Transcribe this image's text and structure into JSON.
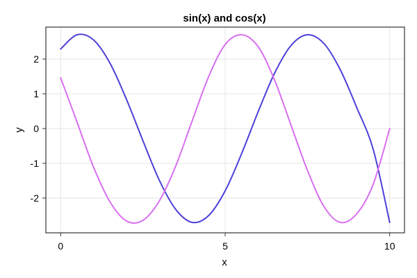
{
  "chart_data": {
    "type": "line",
    "title": "sin(x) and cos(x)",
    "xlabel": "x",
    "ylabel": "y",
    "xlim": [
      -0.45,
      10.45
    ],
    "ylim": [
      -3.0,
      2.92
    ],
    "x_ticks": [
      0,
      5,
      10
    ],
    "x_tick_labels": [
      "0",
      "5",
      "10"
    ],
    "y_ticks": [
      -2,
      -1,
      0,
      1,
      2
    ],
    "y_tick_labels": [
      "-2",
      "-1",
      "0",
      "1",
      "2"
    ],
    "grid": true,
    "legend": "none",
    "series": [
      {
        "color": "#4b3fd8",
        "x": [
          0,
          0.5,
          1,
          1.5,
          2,
          2.5,
          3,
          3.5,
          4,
          4.5,
          5,
          5.5,
          6,
          6.5,
          7,
          7.5,
          8,
          8.5,
          9,
          9.5,
          10
        ],
        "values": [
          2.29,
          2.7,
          2.55,
          1.88,
          0.84,
          -0.35,
          -1.49,
          -2.33,
          -2.7,
          -2.5,
          -1.79,
          -0.72,
          0.48,
          1.59,
          2.39,
          2.7,
          2.45,
          1.69,
          0.6,
          -0.6,
          -2.7
        ]
      },
      {
        "color": "#d96ef0",
        "x": [
          0,
          0.5,
          1,
          1.5,
          2,
          2.5,
          3,
          3.5,
          4,
          4.5,
          5,
          5.5,
          6,
          6.5,
          7,
          7.5,
          8,
          8.5,
          9,
          9.5,
          10
        ],
        "values": [
          1.46,
          0.18,
          -1.11,
          -2.11,
          -2.66,
          -2.64,
          -2.08,
          -1.07,
          0.23,
          1.5,
          2.42,
          2.7,
          2.36,
          1.4,
          0.1,
          -1.2,
          -2.24,
          -2.7,
          -2.45,
          -1.6,
          0.0
        ]
      }
    ]
  }
}
